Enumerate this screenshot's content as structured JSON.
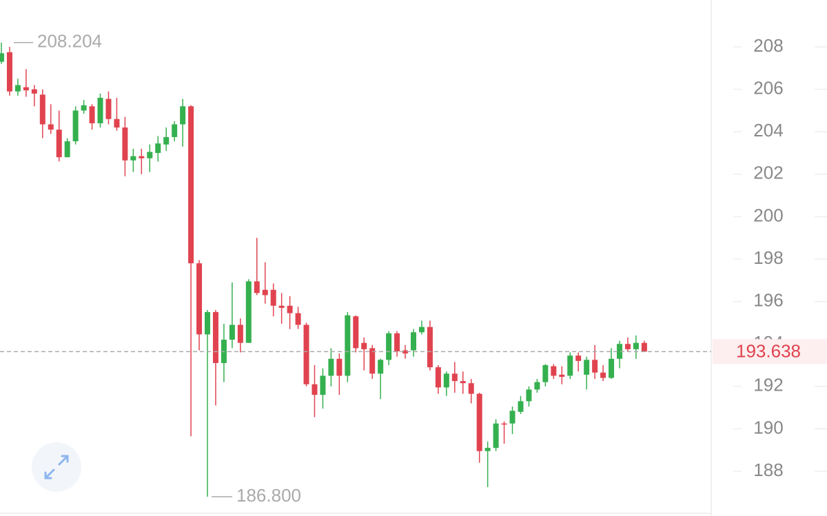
{
  "chart_data": {
    "type": "candlestick",
    "up_color": "#35b04f",
    "down_color": "#e0434f",
    "ylim": [
      185.89,
      210.21
    ],
    "yticks": [
      188,
      190,
      192,
      194,
      196,
      198,
      200,
      202,
      204,
      206,
      208
    ],
    "open": [
      207.3,
      207.75,
      205.9,
      206.1,
      206.0,
      205.75,
      204.35,
      204.1,
      202.8,
      203.55,
      205.0,
      205.2,
      204.4,
      205.55,
      204.6,
      204.2,
      202.65,
      202.85,
      202.75,
      203.0,
      203.4,
      203.75,
      204.35,
      205.2,
      197.8,
      194.45,
      195.5,
      193.1,
      194.2,
      194.9,
      194.05,
      196.95,
      196.55,
      196.55,
      195.8,
      195.8,
      195.45,
      194.9,
      192.1,
      191.6,
      192.5,
      193.3,
      192.5,
      195.3,
      194.05,
      193.8,
      192.6,
      193.25,
      194.5,
      193.7,
      193.7,
      194.55,
      194.8,
      192.9,
      191.95,
      192.6,
      192.25,
      192.15,
      191.65,
      188.95,
      189.1,
      190.25,
      190.25,
      190.8,
      191.3,
      191.85,
      192.2,
      192.95,
      192.55,
      192.5,
      193.45,
      192.55,
      193.25,
      192.65,
      192.4,
      193.3,
      194.0,
      193.75,
      194.05
    ],
    "high": [
      208.204,
      208.0,
      206.5,
      206.95,
      206.2,
      206.0,
      205.3,
      205.0,
      203.7,
      205.2,
      205.5,
      205.3,
      205.8,
      205.9,
      205.6,
      204.7,
      203.2,
      203.2,
      203.4,
      203.8,
      204.2,
      204.5,
      205.55,
      205.25,
      197.95,
      195.6,
      195.6,
      194.95,
      196.9,
      195.2,
      197.05,
      199.0,
      197.85,
      196.85,
      196.4,
      196.25,
      195.75,
      195.0,
      193.0,
      192.85,
      193.8,
      193.55,
      195.5,
      195.35,
      194.3,
      193.95,
      193.3,
      194.6,
      194.6,
      193.95,
      194.7,
      195.1,
      195.1,
      193.0,
      192.7,
      193.15,
      192.7,
      192.35,
      191.7,
      189.4,
      190.45,
      190.35,
      191.05,
      191.55,
      192.0,
      192.35,
      193.05,
      193.05,
      192.95,
      193.6,
      193.6,
      193.4,
      193.95,
      193.0,
      193.8,
      194.15,
      194.3,
      194.4,
      194.15
    ],
    "low": [
      207.2,
      205.7,
      205.7,
      205.65,
      205.2,
      203.7,
      203.9,
      202.6,
      202.8,
      203.4,
      204.85,
      204.1,
      204.2,
      204.35,
      204.05,
      201.9,
      202.1,
      202.0,
      202.1,
      202.6,
      203.1,
      203.55,
      203.3,
      189.65,
      193.7,
      186.8,
      191.1,
      192.2,
      193.8,
      193.6,
      194.05,
      196.3,
      195.9,
      195.3,
      194.95,
      194.7,
      194.7,
      192.0,
      190.55,
      190.95,
      192.0,
      191.6,
      192.2,
      193.6,
      192.75,
      192.35,
      191.4,
      193.0,
      193.4,
      193.3,
      193.4,
      194.45,
      192.75,
      191.65,
      191.55,
      191.7,
      191.65,
      191.2,
      188.4,
      187.25,
      188.95,
      189.3,
      189.75,
      190.7,
      191.05,
      191.7,
      192.0,
      192.35,
      192.1,
      192.35,
      192.7,
      191.85,
      192.35,
      192.25,
      192.35,
      192.85,
      193.65,
      193.3,
      193.65
    ],
    "close": [
      207.7,
      205.9,
      206.2,
      205.95,
      205.8,
      204.35,
      204.1,
      202.8,
      203.55,
      205.0,
      205.25,
      204.4,
      205.6,
      204.6,
      204.2,
      202.65,
      202.85,
      202.75,
      203.05,
      203.45,
      203.75,
      204.35,
      205.2,
      197.8,
      194.45,
      195.5,
      193.1,
      194.2,
      194.9,
      194.05,
      196.95,
      196.4,
      196.3,
      195.8,
      195.7,
      195.45,
      194.9,
      192.1,
      191.6,
      192.5,
      193.3,
      192.5,
      195.35,
      193.8,
      193.75,
      192.6,
      193.25,
      194.5,
      193.65,
      193.55,
      194.55,
      194.8,
      192.9,
      191.95,
      192.6,
      192.25,
      192.15,
      191.65,
      188.95,
      189.1,
      190.25,
      190.2,
      190.85,
      191.3,
      191.85,
      192.2,
      193.0,
      192.5,
      192.45,
      193.45,
      193.2,
      193.25,
      192.65,
      192.4,
      193.3,
      194.0,
      193.75,
      194.05,
      193.638
    ],
    "high_annotation": 208.204,
    "low_annotation": {
      "value": 186.8,
      "label": "186.800"
    },
    "last_price": 193.638
  }
}
